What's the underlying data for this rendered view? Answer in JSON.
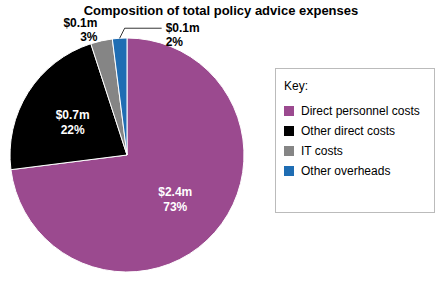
{
  "chart_data": {
    "type": "pie",
    "title": "Composition of total policy advice expenses",
    "categories": [
      "Direct personnel costs",
      "Other direct costs",
      "IT costs",
      "Other overheads"
    ],
    "values": [
      73,
      22,
      3,
      2
    ],
    "value_labels": [
      "73%",
      "22%",
      "3%",
      "2%"
    ],
    "amount_labels": [
      "$2.4m",
      "$0.7m",
      "$0.1m",
      "$0.1m"
    ],
    "colors": [
      "#9b4a8f",
      "#000000",
      "#858585",
      "#1f6db3"
    ],
    "legend": "right",
    "legend_title": "Key:",
    "data_labels": true
  }
}
